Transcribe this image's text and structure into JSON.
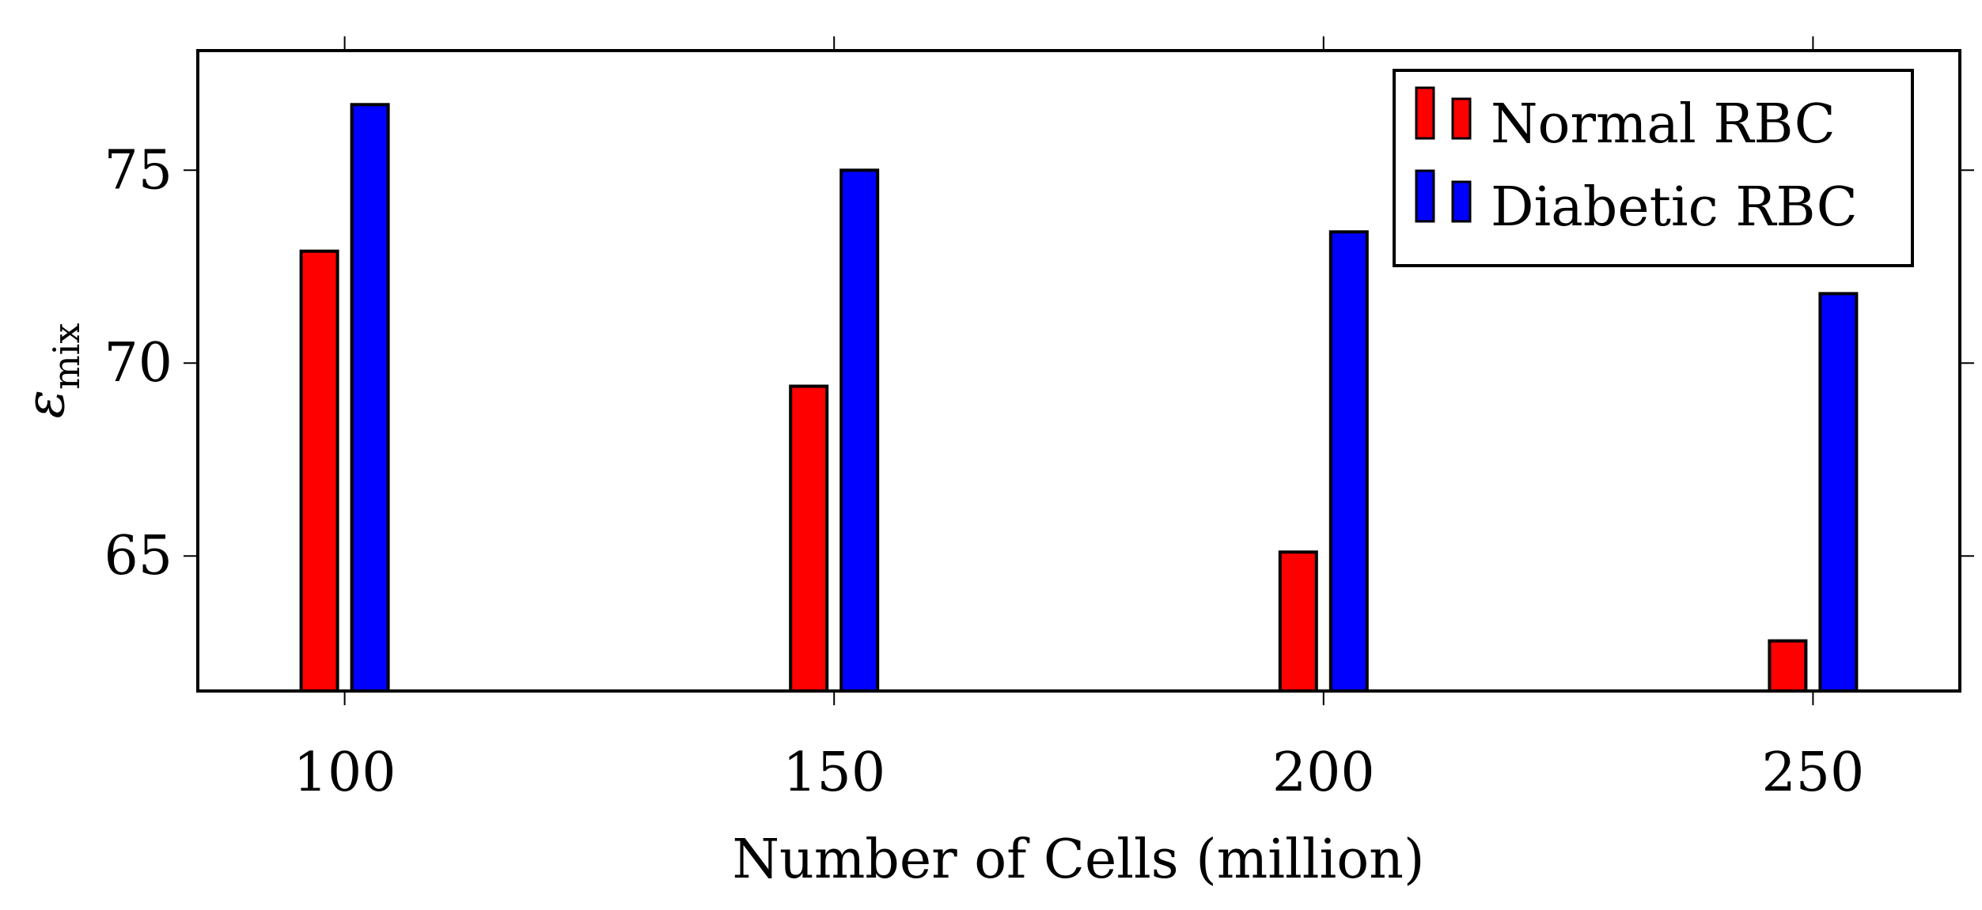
{
  "chart_data": {
    "type": "bar",
    "title": "",
    "xlabel": "Number of Cells (million)",
    "ylabel": {
      "symbol": "ε",
      "subscript": "mix"
    },
    "x_ticks": [
      100,
      150,
      200,
      250
    ],
    "xlim": [
      85,
      265
    ],
    "y_ticks": [
      65,
      70,
      75
    ],
    "ylim": [
      61.5,
      78.1
    ],
    "grid": false,
    "legend_position": "top-right",
    "categories": [
      100,
      150,
      200,
      250
    ],
    "series": [
      {
        "name": "Normal RBC",
        "color": "#ff0000",
        "values": [
          72.9,
          69.4,
          65.1,
          62.8
        ]
      },
      {
        "name": "Diabetic RBC",
        "color": "#0000ff",
        "values": [
          76.7,
          75.0,
          73.4,
          71.8
        ]
      }
    ]
  }
}
